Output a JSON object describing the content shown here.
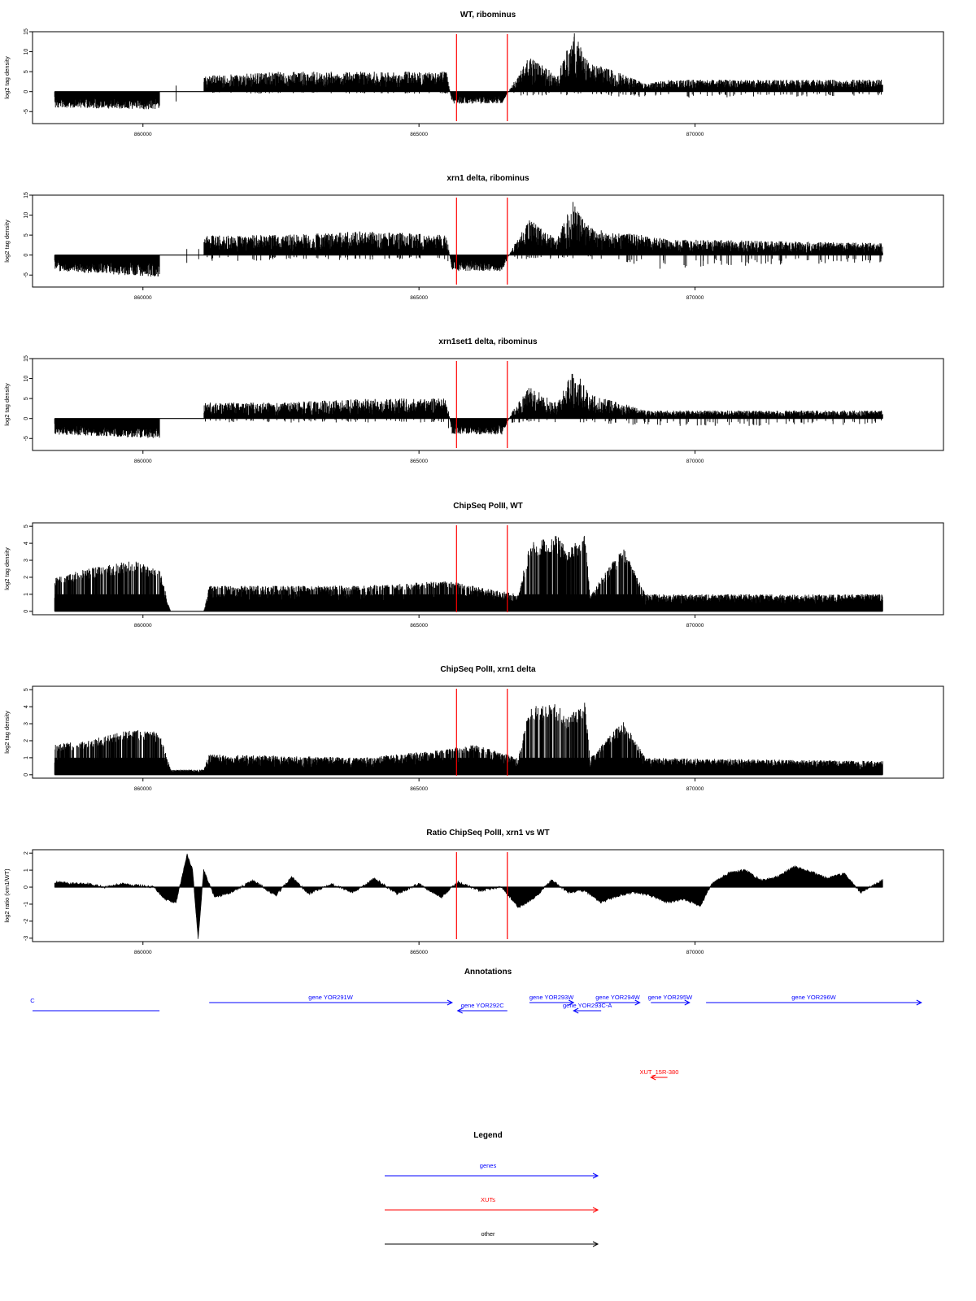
{
  "figure": {
    "x_ticks": [
      860000,
      865000,
      870000
    ],
    "x_range": [
      858000,
      874500
    ],
    "region_marks": [
      865680,
      866600
    ],
    "colors": {
      "track": "#000000",
      "mark": "#ff0000",
      "gene": "#0000ff",
      "xut": "#ff0000",
      "other": "#000000"
    }
  },
  "chart_data": [
    {
      "type": "bar",
      "title": "WT, ribominus",
      "ylabel": "log2 tag density",
      "xlim": [
        858000,
        874500
      ],
      "ylim": [
        -8,
        15
      ],
      "yticks": [
        -5,
        0,
        5,
        10,
        15
      ],
      "data_start": 858400,
      "data_end": 873400,
      "series": [
        {
          "values": [
            [
              858400,
              -4
            ],
            [
              860300,
              -4.5
            ],
            [
              860300,
              0
            ],
            [
              861100,
              0
            ],
            [
              861100,
              4
            ],
            [
              862500,
              5
            ],
            [
              864000,
              5
            ],
            [
              865500,
              5
            ],
            [
              865600,
              -3
            ],
            [
              866500,
              -3
            ],
            [
              866700,
              2
            ],
            [
              867000,
              9
            ],
            [
              867500,
              4
            ],
            [
              867800,
              15
            ],
            [
              868100,
              7
            ],
            [
              868400,
              6
            ],
            [
              869100,
              2
            ],
            [
              869500,
              3
            ],
            [
              873400,
              3
            ]
          ]
        }
      ],
      "negatives": [
        [
          858400,
          -4.5
        ],
        [
          860300,
          -4
        ],
        [
          861100,
          -0.5
        ],
        [
          865500,
          -0.5
        ],
        [
          865600,
          -4
        ],
        [
          866700,
          -1
        ],
        [
          868100,
          -1
        ],
        [
          869400,
          -1.5
        ],
        [
          870000,
          -1.5
        ],
        [
          873400,
          -1
        ]
      ],
      "marks": [
        865680,
        866600
      ]
    },
    {
      "type": "bar",
      "title": "xrn1 delta, ribominus",
      "ylabel": "log2 tag density",
      "xlim": [
        858000,
        874500
      ],
      "ylim": [
        -8,
        15
      ],
      "yticks": [
        -5,
        0,
        5,
        10,
        15
      ],
      "data_start": 858400,
      "data_end": 873400,
      "series": [
        {
          "values": [
            [
              858400,
              -4
            ],
            [
              860300,
              -5.5
            ],
            [
              860300,
              0
            ],
            [
              861100,
              0
            ],
            [
              861100,
              5
            ],
            [
              862500,
              5
            ],
            [
              864000,
              6
            ],
            [
              865500,
              5
            ],
            [
              865600,
              -4
            ],
            [
              866500,
              -4
            ],
            [
              866700,
              2
            ],
            [
              867000,
              9
            ],
            [
              867500,
              4
            ],
            [
              867800,
              14
            ],
            [
              868100,
              7
            ],
            [
              868400,
              6
            ],
            [
              869100,
              5
            ],
            [
              869500,
              4
            ],
            [
              873400,
              3
            ]
          ]
        }
      ],
      "negatives": [
        [
          858400,
          -4.5
        ],
        [
          860300,
          -5
        ],
        [
          861100,
          -1.5
        ],
        [
          865500,
          -1
        ],
        [
          865600,
          -5
        ],
        [
          866700,
          -1
        ],
        [
          868100,
          -1
        ],
        [
          869400,
          -3.5
        ],
        [
          870000,
          -3
        ],
        [
          873400,
          -2
        ]
      ],
      "marks": [
        865680,
        866600
      ]
    },
    {
      "type": "bar",
      "title": "xrn1set1 delta, ribominus",
      "ylabel": "log2 tag density",
      "xlim": [
        858000,
        874500
      ],
      "ylim": [
        -8,
        15
      ],
      "yticks": [
        -5,
        0,
        5,
        10,
        15
      ],
      "data_start": 858400,
      "data_end": 873400,
      "series": [
        {
          "values": [
            [
              858400,
              -4
            ],
            [
              860300,
              -5
            ],
            [
              860300,
              0
            ],
            [
              861100,
              0
            ],
            [
              861100,
              4
            ],
            [
              862500,
              4
            ],
            [
              864000,
              5
            ],
            [
              865500,
              5
            ],
            [
              865600,
              -4
            ],
            [
              866500,
              -4
            ],
            [
              866700,
              2
            ],
            [
              867000,
              8
            ],
            [
              867500,
              4
            ],
            [
              867800,
              13
            ],
            [
              868100,
              6
            ],
            [
              868400,
              5
            ],
            [
              869100,
              2
            ],
            [
              869500,
              2
            ],
            [
              873400,
              2
            ]
          ]
        }
      ],
      "negatives": [
        [
          858400,
          -4.5
        ],
        [
          860300,
          -5
        ],
        [
          861100,
          -1
        ],
        [
          865500,
          -1
        ],
        [
          865600,
          -5
        ],
        [
          866700,
          -1
        ],
        [
          868100,
          -1
        ],
        [
          869400,
          -2
        ],
        [
          870000,
          -2
        ],
        [
          873400,
          -1.5
        ]
      ],
      "marks": [
        865680,
        866600
      ]
    },
    {
      "type": "bar",
      "title": "ChipSeq PolII, WT",
      "ylabel": "log2 tag density",
      "xlim": [
        858000,
        874500
      ],
      "ylim": [
        -0.2,
        5.2
      ],
      "yticks": [
        0,
        1,
        2,
        3,
        4,
        5
      ],
      "data_start": 858400,
      "data_end": 873400,
      "series": [
        {
          "values": [
            [
              858400,
              2
            ],
            [
              859000,
              2.5
            ],
            [
              859800,
              3
            ],
            [
              860300,
              2.5
            ],
            [
              860500,
              0
            ],
            [
              861100,
              0
            ],
            [
              861200,
              1.5
            ],
            [
              864000,
              1.5
            ],
            [
              865500,
              1.8
            ],
            [
              866800,
              1
            ],
            [
              867000,
              4
            ],
            [
              867500,
              4.5
            ],
            [
              867700,
              3.5
            ],
            [
              868000,
              4.8
            ],
            [
              868100,
              1
            ],
            [
              868700,
              3.8
            ],
            [
              869100,
              1
            ],
            [
              873400,
              1
            ]
          ]
        }
      ],
      "marks": [
        865680,
        866600
      ]
    },
    {
      "type": "bar",
      "title": "ChipSeq PolII, xrn1 delta",
      "ylabel": "log2 tag density",
      "xlim": [
        858000,
        874500
      ],
      "ylim": [
        -0.2,
        5.2
      ],
      "yticks": [
        0,
        1,
        2,
        3,
        4,
        5
      ],
      "data_start": 858400,
      "data_end": 873400,
      "series": [
        {
          "values": [
            [
              858400,
              1.8
            ],
            [
              859000,
              2
            ],
            [
              859800,
              2.7
            ],
            [
              860300,
              2.5
            ],
            [
              860500,
              0.3
            ],
            [
              861100,
              0.3
            ],
            [
              861200,
              1.2
            ],
            [
              864000,
              1
            ],
            [
              865500,
              1.5
            ],
            [
              866000,
              1.8
            ],
            [
              866800,
              1
            ],
            [
              867000,
              4
            ],
            [
              867500,
              4.2
            ],
            [
              867700,
              3.5
            ],
            [
              868000,
              4.5
            ],
            [
              868100,
              1
            ],
            [
              868700,
              3.2
            ],
            [
              869100,
              1
            ],
            [
              873400,
              0.8
            ]
          ]
        }
      ],
      "marks": [
        865680,
        866600
      ]
    },
    {
      "type": "area",
      "title": "Ratio ChipSeq PolII, xrn1 vs WT",
      "ylabel": "log2 ratio (xrn1/WT)",
      "xlim": [
        858000,
        874500
      ],
      "ylim": [
        -3.2,
        2.2
      ],
      "yticks": [
        -3,
        -2,
        -1,
        0,
        1,
        2
      ],
      "x": [
        858400,
        858700,
        859000,
        859300,
        859600,
        859900,
        860200,
        860400,
        860600,
        860800,
        860900,
        861000,
        861100,
        861300,
        861600,
        862000,
        862400,
        862700,
        863000,
        863400,
        863800,
        864200,
        864600,
        865000,
        865400,
        865700,
        866100,
        866500,
        866800,
        867100,
        867400,
        867700,
        868000,
        868300,
        868600,
        868900,
        869200,
        869500,
        869800,
        870100,
        870300,
        870600,
        870900,
        871200,
        871500,
        871800,
        872100,
        872400,
        872700,
        873000,
        873400
      ],
      "y": [
        0.3,
        0.2,
        0.2,
        0.0,
        0.2,
        0.1,
        0.0,
        -0.7,
        -0.9,
        1.9,
        1.0,
        -3.1,
        1.0,
        -0.6,
        -0.3,
        0.4,
        -0.5,
        0.6,
        -0.4,
        0.2,
        -0.3,
        0.5,
        -0.4,
        0.2,
        -0.6,
        0.3,
        -0.2,
        0.0,
        -1.2,
        -0.6,
        0.4,
        -0.3,
        -0.2,
        -0.9,
        -0.5,
        -0.3,
        -0.5,
        -0.9,
        -0.7,
        -1.1,
        0.2,
        0.8,
        1.0,
        0.4,
        0.6,
        1.2,
        0.9,
        0.5,
        0.8,
        -0.3,
        0.4
      ],
      "marks": [
        865680,
        866600
      ]
    }
  ],
  "annotations": {
    "title": "Annotations",
    "items": [
      {
        "kind": "gene",
        "label": "",
        "x_start": 857600,
        "x_end": 860300,
        "row": 1,
        "direction": "none",
        "edge_label": "C"
      },
      {
        "kind": "gene",
        "label": "gene YOR291W",
        "x_start": 861200,
        "x_end": 865600,
        "row": 0,
        "direction": "right"
      },
      {
        "kind": "gene",
        "label": "gene YOR292C",
        "x_start": 865700,
        "x_end": 866600,
        "row": 1,
        "direction": "left"
      },
      {
        "kind": "gene",
        "label": "gene YOR293W",
        "x_start": 867000,
        "x_end": 867800,
        "row": 0,
        "direction": "right"
      },
      {
        "kind": "gene",
        "label": "gene YOR293C-A",
        "x_start": 867800,
        "x_end": 868300,
        "row": 1,
        "direction": "left"
      },
      {
        "kind": "gene",
        "label": "gene YOR294W",
        "x_start": 868200,
        "x_end": 869000,
        "row": 0,
        "direction": "right"
      },
      {
        "kind": "gene",
        "label": "gene YOR295W",
        "x_start": 869200,
        "x_end": 869900,
        "row": 0,
        "direction": "right"
      },
      {
        "kind": "gene",
        "label": "gene YOR296W",
        "x_start": 870200,
        "x_end": 874100,
        "row": 0,
        "direction": "right"
      },
      {
        "kind": "xut",
        "label": "XUT_15R-380",
        "x_start": 869200,
        "x_end": 869500,
        "row": 3,
        "direction": "left"
      }
    ]
  },
  "legend": {
    "title": "Legend",
    "items": [
      {
        "label": "genes",
        "color": "#0000ff"
      },
      {
        "label": "XUTs",
        "color": "#ff0000"
      },
      {
        "label": "other",
        "color": "#000000"
      }
    ]
  }
}
